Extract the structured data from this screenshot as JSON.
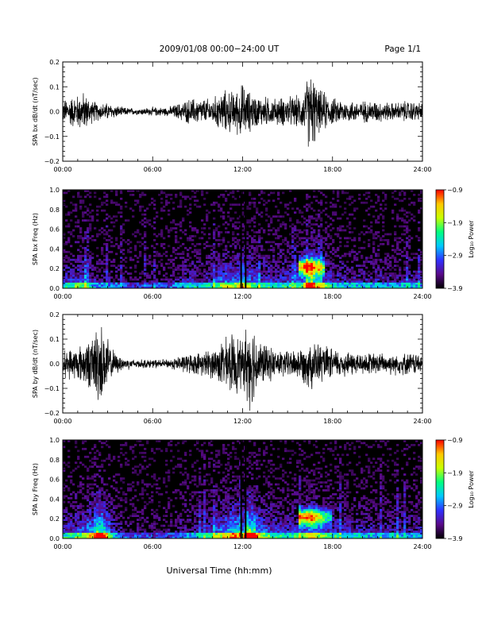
{
  "header": {
    "title": "2009/01/08  00:00−24:00 UT",
    "page": "Page 1/1"
  },
  "xlabel": "Universal Time (hh:mm)",
  "chart_data": [
    {
      "type": "line",
      "title": "",
      "ylabel": "SPA bx dB/dt (nT/sec)",
      "xlim": [
        0,
        24
      ],
      "ylim": [
        -0.2,
        0.2
      ],
      "x_tick_labels": [
        "00:00",
        "06:00",
        "12:00",
        "18:00",
        "24:00"
      ],
      "y_ticks": [
        0.2,
        0.1,
        0.0,
        -0.1,
        -0.2
      ],
      "y_tick_labels": [
        "0.2",
        "0.1",
        "0.0",
        "−0.1",
        "−0.2"
      ],
      "amplitude_profile": {
        "x": [
          0,
          0.5,
          1,
          1.4,
          1.7,
          2,
          2.5,
          3,
          3.5,
          4,
          5,
          6,
          7,
          7.8,
          8.5,
          9,
          10,
          10.5,
          11,
          11.5,
          11.8,
          12,
          12.3,
          12.6,
          13,
          13.5,
          14,
          15,
          15.5,
          16,
          16.3,
          16.6,
          17,
          17.5,
          18,
          18.5,
          19,
          20,
          21,
          22,
          23,
          24
        ],
        "y": [
          0.05,
          0.07,
          0.08,
          0.09,
          0.07,
          0.05,
          0.04,
          0.04,
          0.03,
          0.02,
          0.015,
          0.02,
          0.02,
          0.04,
          0.06,
          0.06,
          0.06,
          0.09,
          0.1,
          0.09,
          0.12,
          0.13,
          0.1,
          0.09,
          0.07,
          0.07,
          0.06,
          0.07,
          0.07,
          0.08,
          0.15,
          0.2,
          0.1,
          0.09,
          0.06,
          0.06,
          0.05,
          0.05,
          0.05,
          0.04,
          0.05,
          0.04
        ]
      }
    },
    {
      "type": "heatmap",
      "title": "",
      "ylabel": "SPA bx Freq (Hz)",
      "xlim": [
        0,
        24
      ],
      "ylim": [
        0,
        1
      ],
      "x_tick_labels": [
        "00:00",
        "06:00",
        "12:00",
        "18:00",
        "24:00"
      ],
      "y_ticks": [
        1.0,
        0.8,
        0.6,
        0.4,
        0.2,
        0.0
      ],
      "y_tick_labels": [
        "1.0",
        "0.8",
        "0.6",
        "0.4",
        "0.2",
        "0.0"
      ],
      "colorbar": {
        "label": "Log₁₀ Power",
        "range": [
          -3.9,
          -0.9
        ],
        "ticks": [
          -0.9,
          -1.9,
          -2.9,
          -3.9
        ],
        "tick_labels": [
          "−0.9",
          "−1.9",
          "−2.9",
          "−3.9"
        ],
        "colormap": [
          "#000000",
          "#5a0a8a",
          "#3030ff",
          "#00c8ff",
          "#00ff80",
          "#c8ff00",
          "#ffc800",
          "#ff0000"
        ]
      },
      "bright_region": {
        "time": [
          15.8,
          17.5
        ],
        "freq": [
          0.15,
          0.3
        ],
        "peak_log_power": -0.9
      }
    },
    {
      "type": "line",
      "title": "",
      "ylabel": "SPA by dB/dt (nT/sec)",
      "xlim": [
        0,
        24
      ],
      "ylim": [
        -0.2,
        0.2
      ],
      "x_tick_labels": [
        "00:00",
        "06:00",
        "12:00",
        "18:00",
        "24:00"
      ],
      "y_ticks": [
        0.2,
        0.1,
        0.0,
        -0.1,
        -0.2
      ],
      "y_tick_labels": [
        "0.2",
        "0.1",
        "0.0",
        "−0.1",
        "−0.2"
      ],
      "amplitude_profile": {
        "x": [
          0,
          0.5,
          1,
          1.5,
          2,
          2.3,
          2.6,
          2.9,
          3.2,
          3.5,
          4,
          5,
          6,
          7,
          8,
          9,
          10,
          10.5,
          11,
          11.5,
          12,
          12.3,
          12.5,
          12.8,
          13,
          13.5,
          14,
          15,
          16,
          16.5,
          17,
          17.5,
          18,
          19,
          20,
          21,
          22,
          23,
          24
        ],
        "y": [
          0.06,
          0.07,
          0.08,
          0.1,
          0.12,
          0.2,
          0.18,
          0.14,
          0.08,
          0.05,
          0.03,
          0.02,
          0.02,
          0.02,
          0.04,
          0.05,
          0.07,
          0.1,
          0.12,
          0.15,
          0.1,
          0.2,
          0.2,
          0.18,
          0.12,
          0.09,
          0.07,
          0.06,
          0.08,
          0.12,
          0.1,
          0.08,
          0.07,
          0.06,
          0.05,
          0.05,
          0.05,
          0.05,
          0.05
        ]
      }
    },
    {
      "type": "heatmap",
      "title": "",
      "ylabel": "SPA by Freq (Hz)",
      "xlim": [
        0,
        24
      ],
      "ylim": [
        0,
        1
      ],
      "x_tick_labels": [
        "00:00",
        "06:00",
        "12:00",
        "18:00",
        "24:00"
      ],
      "y_ticks": [
        1.0,
        0.8,
        0.6,
        0.4,
        0.2,
        0.0
      ],
      "y_tick_labels": [
        "1.0",
        "0.8",
        "0.6",
        "0.4",
        "0.2",
        "0.0"
      ],
      "colorbar": {
        "label": "Log₁₀ Power",
        "range": [
          -3.9,
          -0.9
        ],
        "ticks": [
          -0.9,
          -1.9,
          -2.9,
          -3.9
        ],
        "tick_labels": [
          "−0.9",
          "−1.9",
          "−2.9",
          "−3.9"
        ],
        "colormap": [
          "#000000",
          "#5a0a8a",
          "#3030ff",
          "#00c8ff",
          "#00ff80",
          "#c8ff00",
          "#ffc800",
          "#ff0000"
        ]
      },
      "bright_region": {
        "time": [
          15.8,
          18.0
        ],
        "freq": [
          0.15,
          0.3
        ],
        "peak_log_power": -0.9
      }
    }
  ]
}
